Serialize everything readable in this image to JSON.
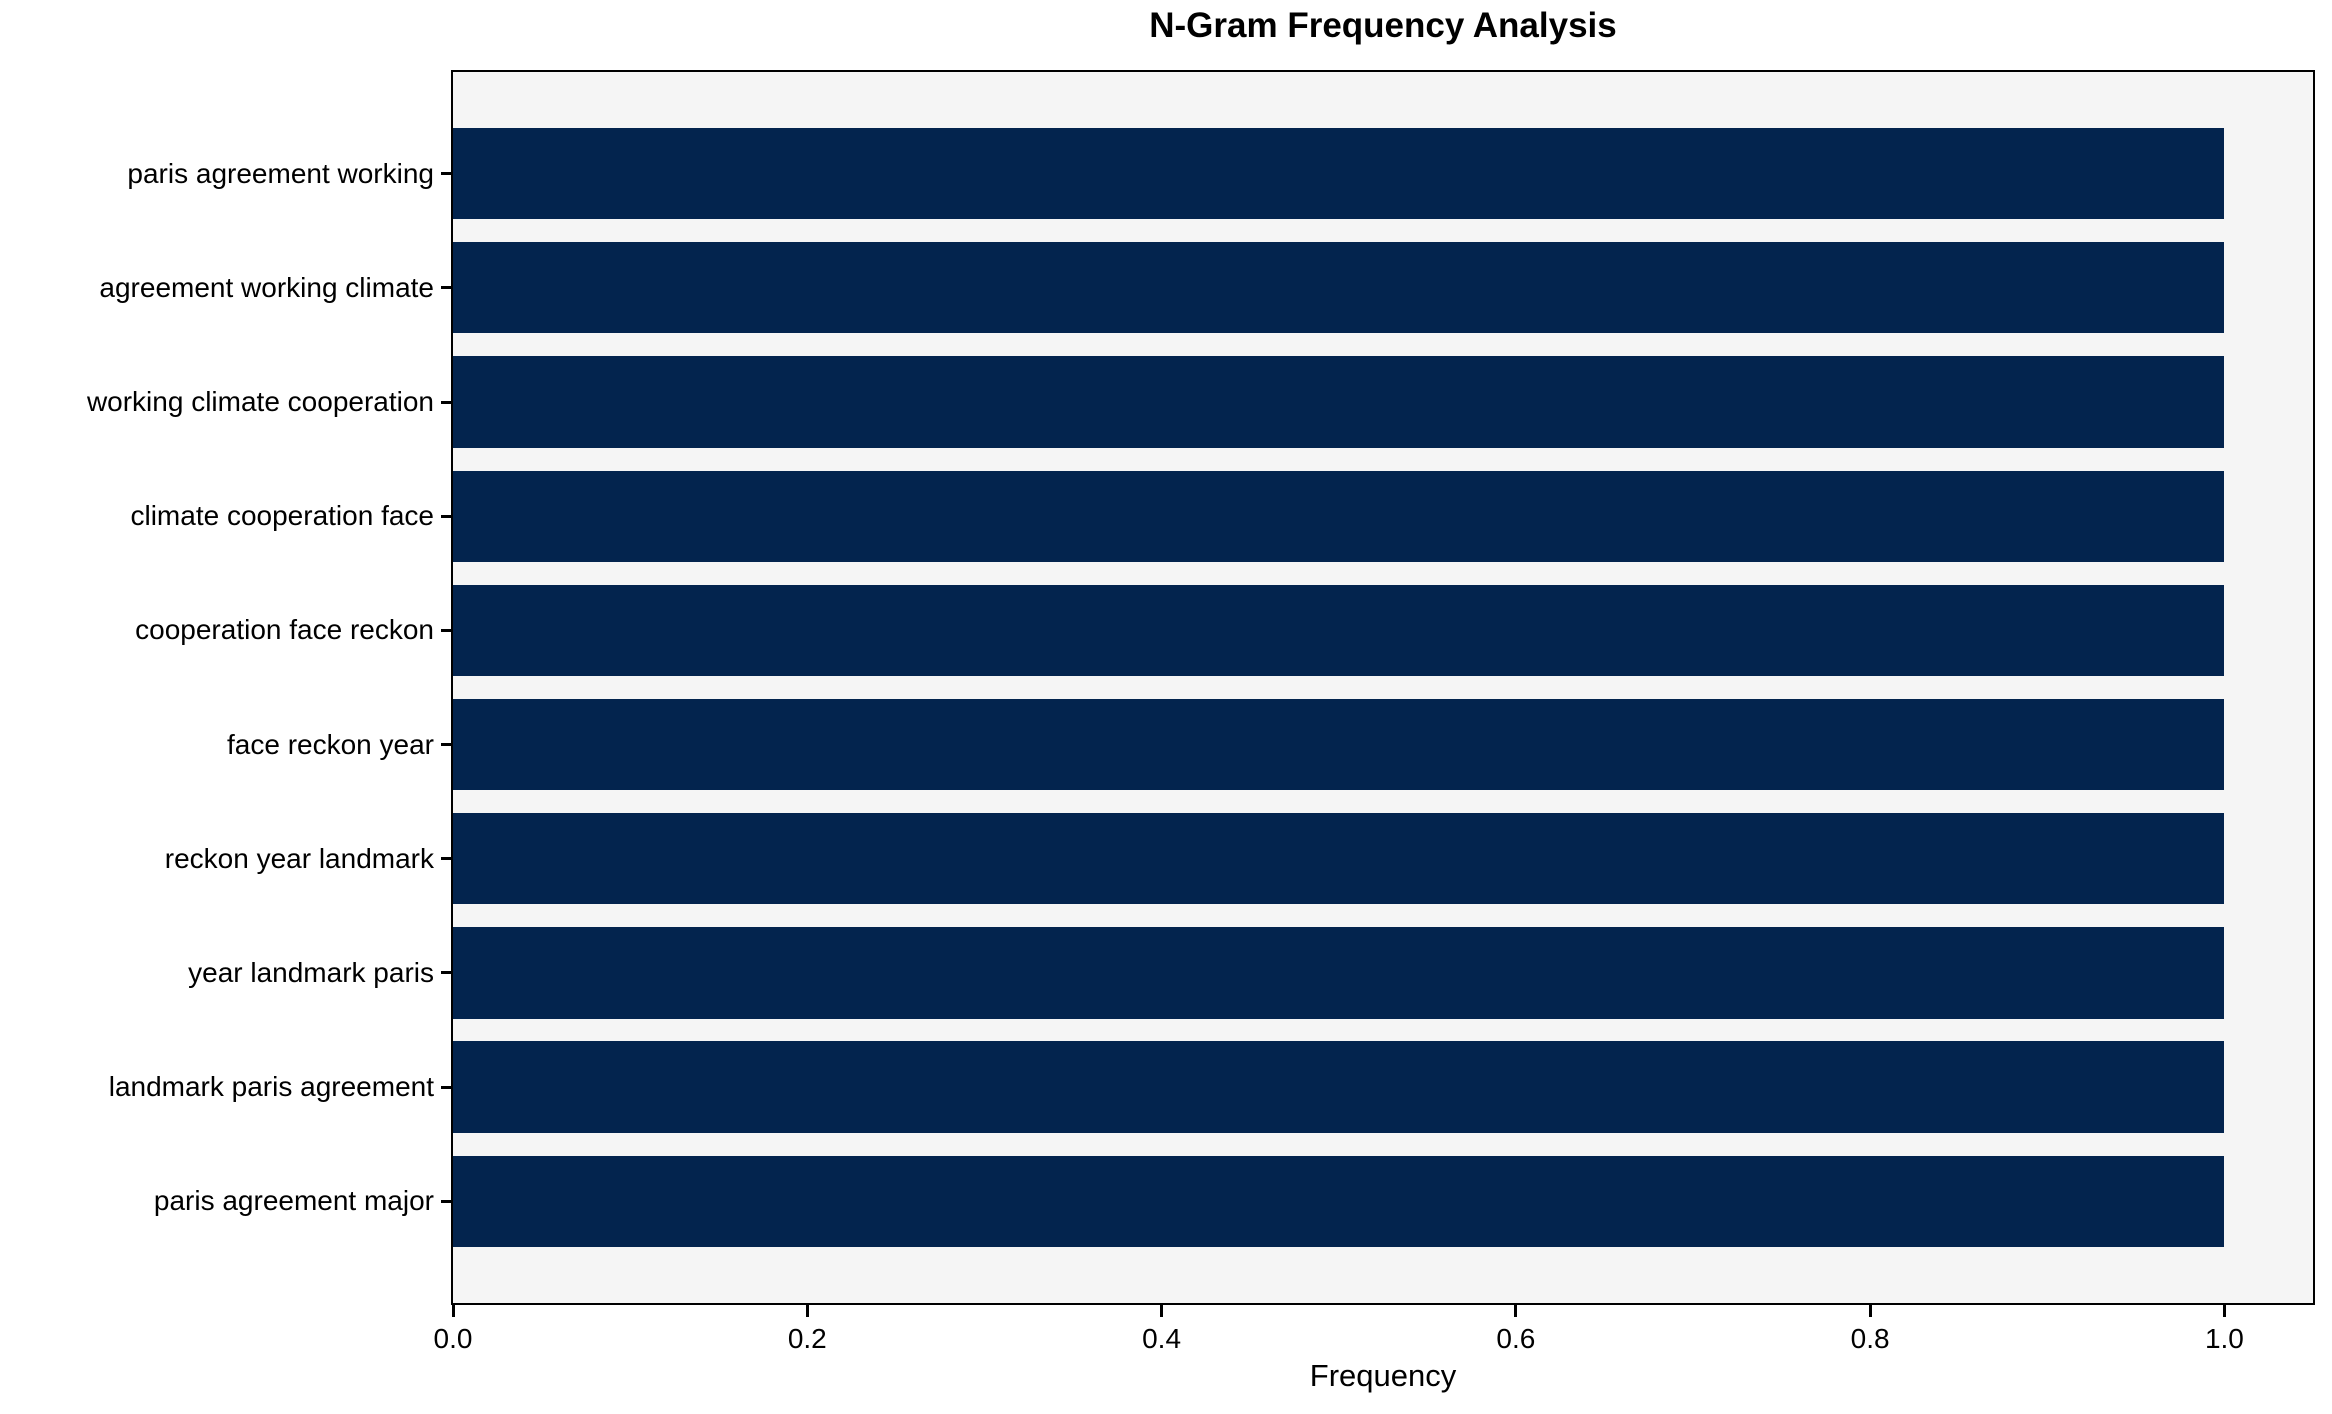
{
  "chart_data": {
    "type": "bar",
    "orientation": "horizontal",
    "title": "N-Gram Frequency Analysis",
    "xlabel": "Frequency",
    "ylabel": "",
    "categories": [
      "paris agreement working",
      "agreement working climate",
      "working climate cooperation",
      "climate cooperation face",
      "cooperation face reckon",
      "face reckon year",
      "reckon year landmark",
      "year landmark paris",
      "landmark paris agreement",
      "paris agreement major"
    ],
    "values": [
      1.0,
      1.0,
      1.0,
      1.0,
      1.0,
      1.0,
      1.0,
      1.0,
      1.0,
      1.0
    ],
    "xlim": [
      0,
      1.05
    ],
    "xticks": [
      0.0,
      0.2,
      0.4,
      0.6,
      0.8,
      1.0
    ],
    "xtick_labels": [
      "0.0",
      "0.2",
      "0.4",
      "0.6",
      "0.8",
      "1.0"
    ],
    "grid": false,
    "legend": null,
    "colors": {
      "bar": "#03244e",
      "plot_background": "#f5f5f5",
      "figure_background": "#ffffff",
      "spine": "#000000",
      "text": "#000000"
    }
  }
}
